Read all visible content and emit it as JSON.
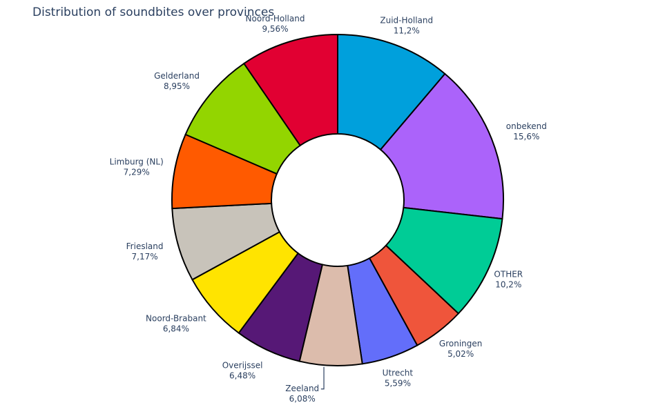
{
  "chart_data": {
    "type": "pie",
    "title": "Distribution of soundbites over provinces",
    "hole": true,
    "slices": [
      {
        "label": "Zuid-Holland",
        "value": 11.2,
        "text": "11,2%",
        "color": "#00a0dc"
      },
      {
        "label": "onbekend",
        "value": 15.6,
        "text": "15,6%",
        "color": "#ab63fa"
      },
      {
        "label": "OTHER",
        "value": 10.2,
        "text": "10,2%",
        "color": "#00cc96"
      },
      {
        "label": "Groningen",
        "value": 5.02,
        "text": "5,02%",
        "color": "#ef553b"
      },
      {
        "label": "Utrecht",
        "value": 5.59,
        "text": "5,59%",
        "color": "#636efa"
      },
      {
        "label": "Zeeland",
        "value": 6.08,
        "text": "6,08%",
        "color": "#dcbcac"
      },
      {
        "label": "Overijssel",
        "value": 6.48,
        "text": "6,48%",
        "color": "#561876"
      },
      {
        "label": "Noord-Brabant",
        "value": 6.84,
        "text": "6,84%",
        "color": "#ffe400"
      },
      {
        "label": "Friesland",
        "value": 7.17,
        "text": "7,17%",
        "color": "#c8c3ba"
      },
      {
        "label": "Limburg (NL)",
        "value": 7.29,
        "text": "7,29%",
        "color": "#ff5a00"
      },
      {
        "label": "Gelderland",
        "value": 8.95,
        "text": "8,95%",
        "color": "#93d500"
      },
      {
        "label": "Noord-Holland",
        "value": 9.56,
        "text": "9,56%",
        "color": "#e10032"
      }
    ]
  }
}
